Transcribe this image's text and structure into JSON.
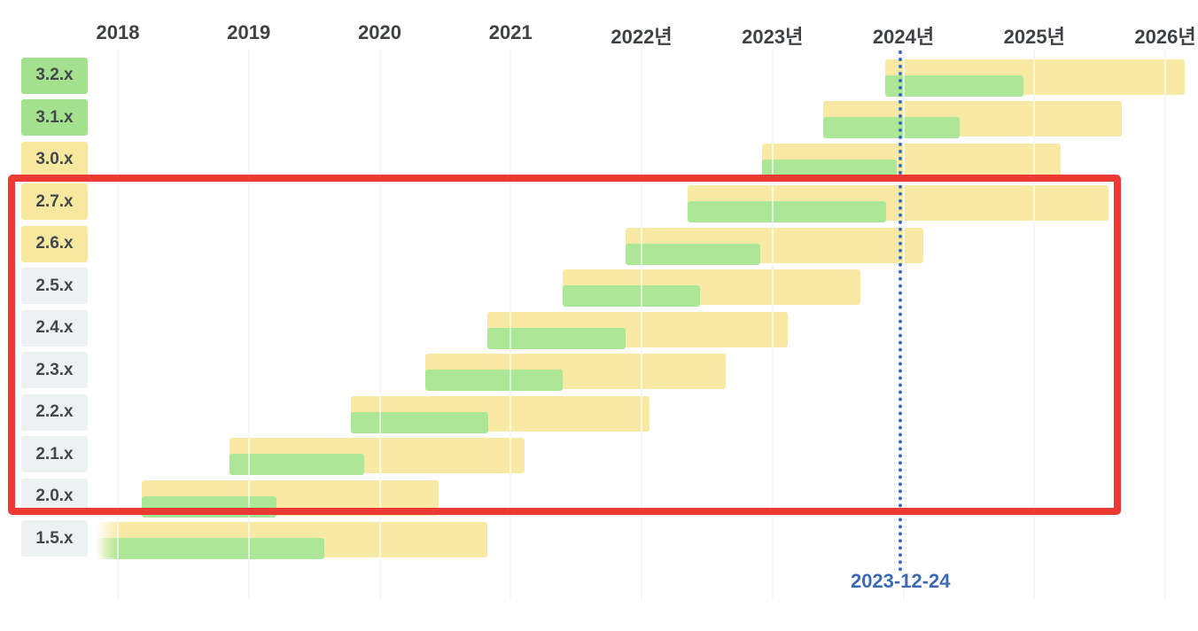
{
  "chart_data": {
    "type": "gantt",
    "description": "Version support timeline: for each release line, a yellow bar spans release date to end of commercial support and a green overlay bar spans release date to end of OSS support.",
    "x_axis": {
      "ticks": [
        {
          "year": 2018,
          "label": "2018"
        },
        {
          "year": 2019,
          "label": "2019"
        },
        {
          "year": 2020,
          "label": "2020"
        },
        {
          "year": 2021,
          "label": "2021"
        },
        {
          "year": 2022,
          "label": "2022년"
        },
        {
          "year": 2023,
          "label": "2023년"
        },
        {
          "year": 2024,
          "label": "2024년"
        },
        {
          "year": 2025,
          "label": "2025년"
        },
        {
          "year": 2026,
          "label": "2026년"
        }
      ],
      "range": [
        2017.84,
        2026.25
      ],
      "grid": true
    },
    "rows": [
      {
        "version": "3.2.x",
        "label_color": "green",
        "start": 2023.86,
        "oss_end": 2024.92,
        "support_end": 2026.15,
        "fade_left": false
      },
      {
        "version": "3.1.x",
        "label_color": "green",
        "start": 2023.39,
        "oss_end": 2024.43,
        "support_end": 2025.67,
        "fade_left": false
      },
      {
        "version": "3.0.x",
        "label_color": "yellow",
        "start": 2022.92,
        "oss_end": 2023.95,
        "support_end": 2025.2,
        "fade_left": false
      },
      {
        "version": "2.7.x",
        "label_color": "yellow",
        "start": 2022.35,
        "oss_end": 2023.87,
        "support_end": 2025.57,
        "fade_left": false
      },
      {
        "version": "2.6.x",
        "label_color": "yellow",
        "start": 2021.88,
        "oss_end": 2022.91,
        "support_end": 2024.15,
        "fade_left": false
      },
      {
        "version": "2.5.x",
        "label_color": "gray",
        "start": 2021.4,
        "oss_end": 2022.45,
        "support_end": 2023.67,
        "fade_left": false
      },
      {
        "version": "2.4.x",
        "label_color": "gray",
        "start": 2020.82,
        "oss_end": 2021.88,
        "support_end": 2023.12,
        "fade_left": false
      },
      {
        "version": "2.3.x",
        "label_color": "gray",
        "start": 2020.35,
        "oss_end": 2021.4,
        "support_end": 2022.64,
        "fade_left": false
      },
      {
        "version": "2.2.x",
        "label_color": "gray",
        "start": 2019.78,
        "oss_end": 2020.83,
        "support_end": 2022.06,
        "fade_left": false
      },
      {
        "version": "2.1.x",
        "label_color": "gray",
        "start": 2018.85,
        "oss_end": 2019.88,
        "support_end": 2021.11,
        "fade_left": false
      },
      {
        "version": "2.0.x",
        "label_color": "gray",
        "start": 2018.18,
        "oss_end": 2019.21,
        "support_end": 2020.45,
        "fade_left": false
      },
      {
        "version": "1.5.x",
        "label_color": "gray",
        "start": 2017.84,
        "oss_end": 2019.58,
        "support_end": 2020.82,
        "fade_left": true
      }
    ],
    "marker": {
      "label": "2023-12-24",
      "year": 2023.978
    },
    "highlight": {
      "versions": [
        "2.7.x",
        "2.6.x",
        "2.5.x",
        "2.4.x",
        "2.3.x",
        "2.2.x",
        "2.1.x",
        "2.0.x"
      ]
    }
  },
  "colors": {
    "bar_yellow": "#f8e9a4",
    "bar_green": "#abe796",
    "label_green": "#a4e18f",
    "label_yellow": "#f7e8a0",
    "label_gray": "#edf1f2",
    "gridline": "#e7eef1",
    "gridline_over_bar": "rgba(255,255,255,0.6)",
    "axis_text": "#3f4245",
    "version_text": "#44474b",
    "marker_blue": "#3b6cbe",
    "marker_text_blue": "#3c6ab4",
    "highlight_red": "#eb3934"
  }
}
